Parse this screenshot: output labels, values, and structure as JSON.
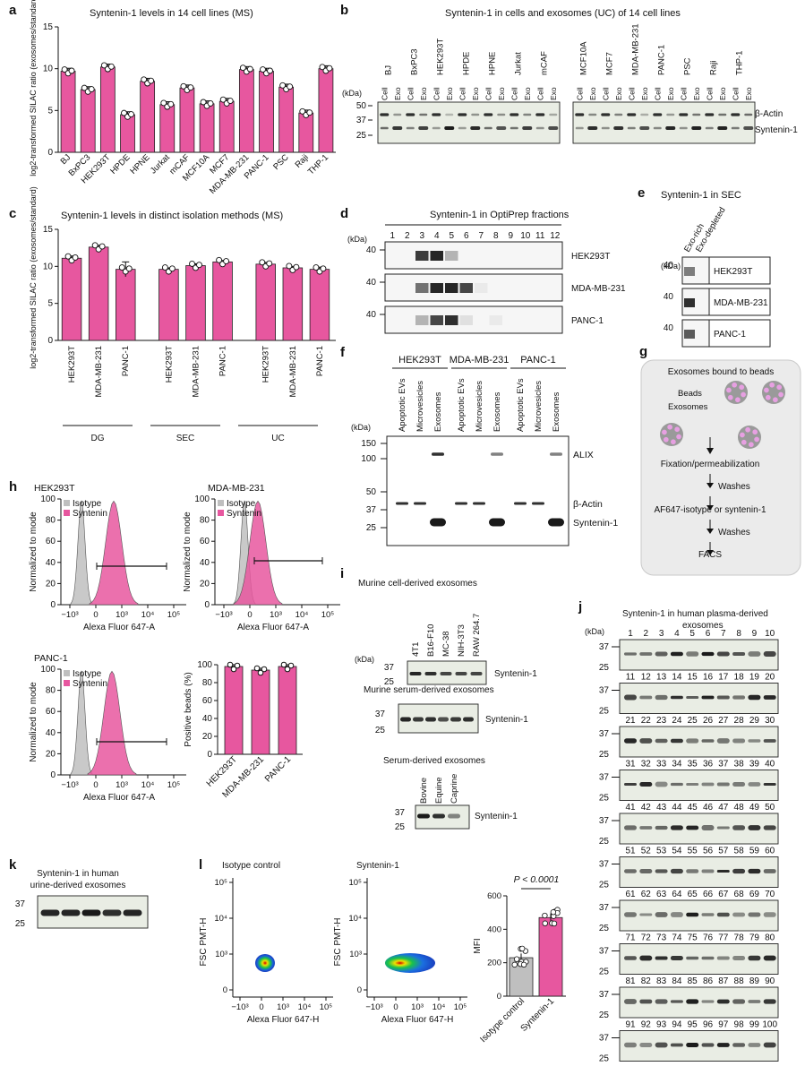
{
  "colors": {
    "bar": "#e7579f",
    "bar_dark": "#c8327e",
    "isotype": "#bfbfbf",
    "blot_bg": "#e9ede4",
    "band": "#1a1a1a"
  },
  "panels": {
    "a": {
      "letter": "a",
      "title": "Syntenin-1 levels in 14 cell lines (MS)",
      "ylabel": "log2-transformed SILAC ratio (exosomes/standard)"
    },
    "b": {
      "letter": "b",
      "title": "Syntenin-1 in cells and exosomes (UC) of 14 cell lines",
      "lanes_left": [
        "BJ",
        "BxPC3",
        "HEK293T",
        "HPDE",
        "HPNE",
        "Jurkat",
        "mCAF"
      ],
      "lanes_right": [
        "MCF10A",
        "MCF7",
        "MDA-MB-231",
        "PANC-1",
        "PSC",
        "Raji",
        "THP-1"
      ],
      "sub": [
        "Cell",
        "Exo"
      ],
      "kda": "(kDa)",
      "markers": [
        "50",
        "37",
        "25"
      ],
      "labels": [
        "β-Actin",
        "Syntenin-1"
      ]
    },
    "c": {
      "letter": "c",
      "title": "Syntenin-1 levels in distinct isolation methods (MS)",
      "ylabel": "log2-transformed SILAC ratio (exosomes/standard)",
      "groups": [
        "DG",
        "SEC",
        "UC"
      ]
    },
    "d": {
      "letter": "d",
      "title": "Syntenin-1 in OptiPrep fractions",
      "fractions": [
        "1",
        "2",
        "3",
        "4",
        "5",
        "6",
        "7",
        "8",
        "9",
        "10",
        "11",
        "12"
      ],
      "marker": "40",
      "rows": [
        "HEK293T",
        "MDA-MB-231",
        "PANC-1"
      ]
    },
    "e": {
      "letter": "e",
      "title": "Syntenin-1 in SEC",
      "lanes": [
        "Exo-rich",
        "Exo-depleted"
      ],
      "kda": "(kDa)",
      "marker": "40",
      "rows": [
        "HEK293T",
        "MDA-MB-231",
        "PANC-1"
      ]
    },
    "f": {
      "letter": "f",
      "groups": [
        "HEK293T",
        "MDA-MB-231",
        "PANC-1"
      ],
      "lanes": [
        "Apoptotic EVs",
        "Microvesicles",
        "Exosomes"
      ],
      "kda": "(kDa)",
      "markers": [
        "150",
        "100",
        "50",
        "37",
        "25"
      ],
      "labels": [
        "ALIX",
        "β-Actin",
        "Syntenin-1"
      ]
    },
    "g": {
      "letter": "g",
      "title": "Exosomes bound to beads",
      "beads": "Beads",
      "exosomes": "Exosomes",
      "steps": [
        "Fixation/permeabilization",
        "Washes",
        "AF647-isotype or syntenin-1",
        "Washes",
        "FACS"
      ]
    },
    "h": {
      "letter": "h",
      "plots": [
        "HEK293T",
        "MDA-MB-231",
        "PANC-1"
      ],
      "legend": [
        "Isotype",
        "Syntenin"
      ],
      "ylabel": "Normalized to mode",
      "xlabel": "Alexa Fluor 647-A",
      "yticks": [
        "0",
        "20",
        "40",
        "60",
        "80",
        "100"
      ],
      "xticks": [
        "−10³",
        "0",
        "10³",
        "10⁴",
        "10⁵"
      ],
      "bar_ylabel": "Positive beads (%)"
    },
    "i": {
      "letter": "i",
      "titles": [
        "Murine cell-derived exosomes",
        "Murine serum-derived exosomes",
        "Serum-derived exosomes"
      ],
      "lanes1": [
        "4T1",
        "B16-F10",
        "MC-38",
        "NIH-3T3",
        "RAW 264.7"
      ],
      "lanes3": [
        "Bovine",
        "Equine",
        "Caprine"
      ],
      "label": "Syntenin-1",
      "kda": "(kDa)",
      "markers": [
        "37",
        "25"
      ]
    },
    "j": {
      "letter": "j",
      "title": "Syntenin-1 in human plasma-derived exosomes",
      "kda": "(kDa)",
      "markers": [
        "37",
        "25"
      ]
    },
    "k": {
      "letter": "k",
      "title": "Syntenin-1 in human urine-derived exosomes",
      "markers": [
        "37",
        "25"
      ]
    },
    "l": {
      "letter": "l",
      "titles": [
        "Isotype control",
        "Syntenin-1"
      ],
      "ylabel": "FSC PMT-H",
      "xlabel": "Alexa Fluor 647-H",
      "yticks": [
        "0",
        "10³",
        "10⁴",
        "10⁵"
      ],
      "xticks": [
        "−10³",
        "0",
        "10³",
        "10⁴",
        "10⁵"
      ],
      "bar_ylabel": "MFI",
      "pvalue": "P < 0.0001",
      "bar_yticks": [
        "0",
        "200",
        "400",
        "600"
      ]
    }
  },
  "chart_data": [
    {
      "panel": "a",
      "type": "bar",
      "title": "Syntenin-1 levels in 14 cell lines (MS)",
      "categories": [
        "BJ",
        "BxPC3",
        "HEK293T",
        "HPDE",
        "HPNE",
        "Jurkat",
        "mCAF",
        "MCF10A",
        "MCF7",
        "MDA-MB-231",
        "PANC-1",
        "PSC",
        "Raji",
        "THP-1"
      ],
      "values": [
        9.7,
        7.5,
        10.2,
        4.5,
        8.5,
        5.7,
        7.7,
        5.8,
        6.1,
        9.9,
        9.7,
        7.8,
        4.7,
        10.0
      ],
      "ylabel": "log2-transformed SILAC ratio (exosomes/standard)",
      "ylim": [
        0,
        15
      ],
      "yticks": [
        0,
        5,
        10,
        15
      ]
    },
    {
      "panel": "c",
      "type": "bar",
      "title": "Syntenin-1 levels in distinct isolation methods (MS)",
      "categories": [
        "HEK293T",
        "MDA-MB-231",
        "PANC-1",
        "HEK293T",
        "MDA-MB-231",
        "PANC-1",
        "HEK293T",
        "MDA-MB-231",
        "PANC-1"
      ],
      "groups": [
        "DG",
        "DG",
        "DG",
        "SEC",
        "SEC",
        "SEC",
        "UC",
        "UC",
        "UC"
      ],
      "values": [
        11.1,
        12.6,
        9.6,
        9.6,
        10.1,
        10.6,
        10.3,
        9.8,
        9.6
      ],
      "ylabel": "log2-transformed SILAC ratio (exosomes/standard)",
      "ylim": [
        0,
        15
      ],
      "yticks": [
        0,
        5,
        10,
        15
      ]
    },
    {
      "panel": "h",
      "type": "bar",
      "categories": [
        "HEK293T",
        "MDA-MB-231",
        "PANC-1"
      ],
      "values": [
        98,
        94,
        98
      ],
      "ylabel": "Positive beads (%)",
      "ylim": [
        0,
        100
      ],
      "yticks": [
        0,
        20,
        40,
        60,
        80,
        100
      ]
    },
    {
      "panel": "l",
      "type": "bar",
      "categories": [
        "Isotype control",
        "Syntenin-1"
      ],
      "values": [
        230,
        470
      ],
      "ylabel": "MFI",
      "ylim": [
        0,
        600
      ],
      "yticks": [
        0,
        200,
        400,
        600
      ],
      "annotation": "P < 0.0001"
    }
  ]
}
